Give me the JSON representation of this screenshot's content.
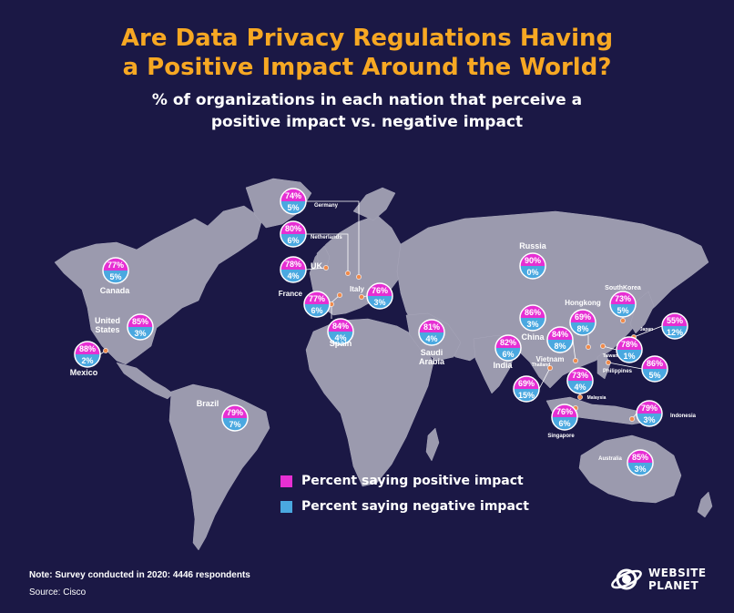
{
  "title": "Are Data Privacy Regulations Having\na Positive Impact Around the World?",
  "subtitle": "% of organizations in each nation that perceive a\npositive impact vs. negative impact",
  "colors": {
    "background": "#1b1845",
    "land": "#9b9aae",
    "positive": "#e62fd3",
    "negative": "#4aa8e0",
    "title": "#f7a823",
    "marker": "#f08a4b"
  },
  "legend": {
    "positive": "Percent saying positive impact",
    "negative": "Percent saying negative impact"
  },
  "countries": [
    {
      "name": "Germany",
      "positive": "74%",
      "negative": "5%"
    },
    {
      "name": "Netherlands",
      "positive": "80%",
      "negative": "6%"
    },
    {
      "name": "UK",
      "positive": "78%",
      "negative": "4%"
    },
    {
      "name": "France",
      "positive": "77%",
      "negative": "6%"
    },
    {
      "name": "Italy",
      "positive": "76%",
      "negative": "3%"
    },
    {
      "name": "Spain",
      "positive": "84%",
      "negative": "4%"
    },
    {
      "name": "Canada",
      "positive": "77%",
      "negative": "5%"
    },
    {
      "name": "United States",
      "positive": "85%",
      "negative": "3%"
    },
    {
      "name": "Mexico",
      "positive": "88%",
      "negative": "2%"
    },
    {
      "name": "Brazil",
      "positive": "79%",
      "negative": "7%"
    },
    {
      "name": "Russia",
      "positive": "90%",
      "negative": "0%"
    },
    {
      "name": "Saudi Arabia",
      "positive": "81%",
      "negative": "4%"
    },
    {
      "name": "India",
      "positive": "82%",
      "negative": "6%"
    },
    {
      "name": "China",
      "positive": "86%",
      "negative": "3%"
    },
    {
      "name": "Vietnam",
      "positive": "84%",
      "negative": "8%"
    },
    {
      "name": "Hongkong",
      "positive": "69%",
      "negative": "8%"
    },
    {
      "name": "SouthKorea",
      "positive": "73%",
      "negative": "5%"
    },
    {
      "name": "Japan",
      "positive": "55%",
      "negative": "12%"
    },
    {
      "name": "Taiwan",
      "positive": "78%",
      "negative": "1%"
    },
    {
      "name": "Philippines",
      "positive": "86%",
      "negative": "5%"
    },
    {
      "name": "Thailand",
      "positive": "69%",
      "negative": "15%"
    },
    {
      "name": "Malaysia",
      "positive": "73%",
      "negative": "4%"
    },
    {
      "name": "Singapore",
      "positive": "76%",
      "negative": "6%"
    },
    {
      "name": "Indonesia",
      "positive": "79%",
      "negative": "3%"
    },
    {
      "name": "Australia",
      "positive": "85%",
      "negative": "3%"
    }
  ],
  "note": "Note: Survey conducted in 2020: 4446 respondents",
  "source": "Source: Cisco",
  "brand": "WEBSITE\nPLANET"
}
